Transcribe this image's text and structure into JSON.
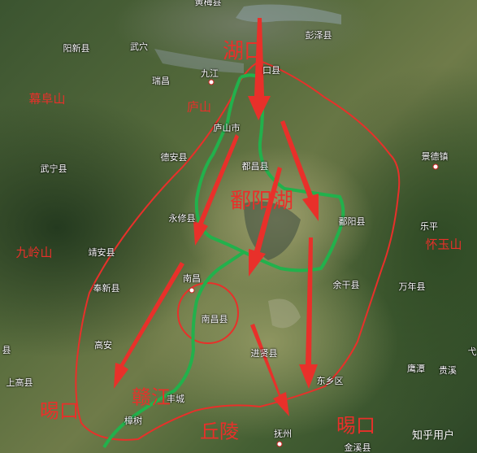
{
  "map": {
    "places": [
      {
        "key": "huangmei",
        "label": "黄梅县"
      },
      {
        "key": "pengze",
        "label": "彭泽县"
      },
      {
        "key": "yangxin",
        "label": "阳新县"
      },
      {
        "key": "wuxue",
        "label": "武穴"
      },
      {
        "key": "ruichang",
        "label": "瑞昌"
      },
      {
        "key": "jiujiang",
        "label": "九江"
      },
      {
        "key": "hukou",
        "label": "口县"
      },
      {
        "key": "lushan",
        "label": "庐山市"
      },
      {
        "key": "jingdezhen",
        "label": "景德镇"
      },
      {
        "key": "dean",
        "label": "德安县"
      },
      {
        "key": "wuning",
        "label": "武宁县"
      },
      {
        "key": "duchang",
        "label": "都昌县"
      },
      {
        "key": "yongxiu",
        "label": "永修县"
      },
      {
        "key": "poyang",
        "label": "鄱阳县"
      },
      {
        "key": "leping",
        "label": "乐平"
      },
      {
        "key": "jingan",
        "label": "靖安县"
      },
      {
        "key": "nanchang",
        "label": "南昌"
      },
      {
        "key": "fengxin",
        "label": "奉新县"
      },
      {
        "key": "yugan",
        "label": "余干县"
      },
      {
        "key": "wannian",
        "label": "万年县"
      },
      {
        "key": "nanchangxian",
        "label": "南昌县"
      },
      {
        "key": "xian",
        "label": "县"
      },
      {
        "key": "gaoan",
        "label": "高安"
      },
      {
        "key": "jinxian",
        "label": "进贤县"
      },
      {
        "key": "yingtan",
        "label": "鹰潭"
      },
      {
        "key": "guixi",
        "label": "贵溪"
      },
      {
        "key": "shanggao",
        "label": "上高县"
      },
      {
        "key": "dongxiang",
        "label": "东乡区"
      },
      {
        "key": "zhangshu",
        "label": "樟树"
      },
      {
        "key": "fengcheng",
        "label": "丰城"
      },
      {
        "key": "fuzhou",
        "label": "抚州"
      },
      {
        "key": "jinxixian",
        "label": "金溪县"
      },
      {
        "key": "yu",
        "label": "弋"
      }
    ],
    "annotations": [
      {
        "key": "hukou_big",
        "label": "湖口"
      },
      {
        "key": "mufu",
        "label": "幕阜山"
      },
      {
        "key": "lu",
        "label": "庐山"
      },
      {
        "key": "poyanghu",
        "label": "鄱阳湖"
      },
      {
        "key": "jiuling",
        "label": "九岭山"
      },
      {
        "key": "huaiyu",
        "label": "怀玉山"
      },
      {
        "key": "ganjiang",
        "label": "赣江"
      },
      {
        "key": "yakou_w",
        "label": "晹口"
      },
      {
        "key": "qiuling",
        "label": "丘陵"
      },
      {
        "key": "yakou_e",
        "label": "晹口"
      }
    ],
    "watermark": "知乎用户",
    "colors": {
      "basin_outline": "#e8302a",
      "lake_river": "#22b14c",
      "arrows": "#e8302a"
    }
  }
}
